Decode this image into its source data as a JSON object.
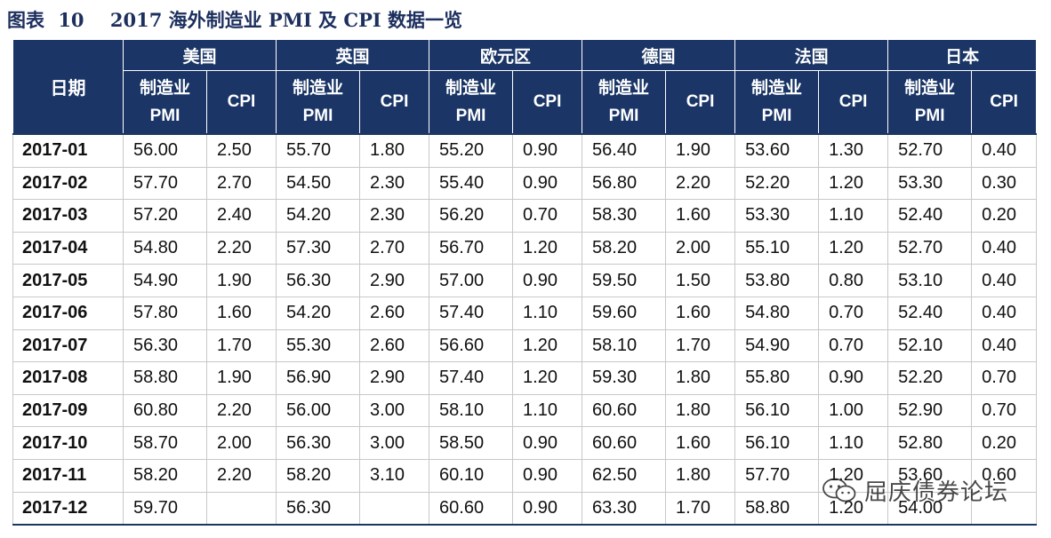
{
  "title": {
    "figure_label": "图表",
    "figure_number": "10",
    "text": "2017 海外制造业 PMI 及 CPI 数据一览"
  },
  "table": {
    "date_header": "日期",
    "countries": [
      "美国",
      "英国",
      "欧元区",
      "德国",
      "法国",
      "日本"
    ],
    "sub_headers": {
      "pmi_line1": "制造业",
      "pmi_line2": "PMI",
      "cpi": "CPI"
    },
    "rows": [
      {
        "date": "2017-01",
        "cells": [
          "56.00",
          "2.50",
          "55.70",
          "1.80",
          "55.20",
          "0.90",
          "56.40",
          "1.90",
          "53.60",
          "1.30",
          "52.70",
          "0.40"
        ]
      },
      {
        "date": "2017-02",
        "cells": [
          "57.70",
          "2.70",
          "54.50",
          "2.30",
          "55.40",
          "0.90",
          "56.80",
          "2.20",
          "52.20",
          "1.20",
          "53.30",
          "0.30"
        ]
      },
      {
        "date": "2017-03",
        "cells": [
          "57.20",
          "2.40",
          "54.20",
          "2.30",
          "56.20",
          "0.70",
          "58.30",
          "1.60",
          "53.30",
          "1.10",
          "52.40",
          "0.20"
        ]
      },
      {
        "date": "2017-04",
        "cells": [
          "54.80",
          "2.20",
          "57.30",
          "2.70",
          "56.70",
          "1.20",
          "58.20",
          "2.00",
          "55.10",
          "1.20",
          "52.70",
          "0.40"
        ]
      },
      {
        "date": "2017-05",
        "cells": [
          "54.90",
          "1.90",
          "56.30",
          "2.90",
          "57.00",
          "0.90",
          "59.50",
          "1.50",
          "53.80",
          "0.80",
          "53.10",
          "0.40"
        ]
      },
      {
        "date": "2017-06",
        "cells": [
          "57.80",
          "1.60",
          "54.20",
          "2.60",
          "57.40",
          "1.10",
          "59.60",
          "1.60",
          "54.80",
          "0.70",
          "52.40",
          "0.40"
        ]
      },
      {
        "date": "2017-07",
        "cells": [
          "56.30",
          "1.70",
          "55.30",
          "2.60",
          "56.60",
          "1.20",
          "58.10",
          "1.70",
          "54.90",
          "0.70",
          "52.10",
          "0.40"
        ]
      },
      {
        "date": "2017-08",
        "cells": [
          "58.80",
          "1.90",
          "56.90",
          "2.90",
          "57.40",
          "1.20",
          "59.30",
          "1.80",
          "55.80",
          "0.90",
          "52.20",
          "0.70"
        ]
      },
      {
        "date": "2017-09",
        "cells": [
          "60.80",
          "2.20",
          "56.00",
          "3.00",
          "58.10",
          "1.10",
          "60.60",
          "1.80",
          "56.10",
          "1.00",
          "52.90",
          "0.70"
        ]
      },
      {
        "date": "2017-10",
        "cells": [
          "58.70",
          "2.00",
          "56.30",
          "3.00",
          "58.50",
          "0.90",
          "60.60",
          "1.60",
          "56.10",
          "1.10",
          "52.80",
          "0.20"
        ]
      },
      {
        "date": "2017-11",
        "cells": [
          "58.20",
          "2.20",
          "58.20",
          "3.10",
          "60.10",
          "0.90",
          "62.50",
          "1.80",
          "57.70",
          "1.20",
          "53.60",
          "0.60"
        ]
      },
      {
        "date": "2017-12",
        "cells": [
          "59.70",
          "",
          "56.30",
          "",
          "60.60",
          "0.90",
          "63.30",
          "1.70",
          "58.80",
          "1.20",
          "54.00",
          ""
        ]
      }
    ]
  },
  "watermark": {
    "text": "屈庆债券论坛",
    "icon": "wechat-icon"
  },
  "colors": {
    "header_bg": "#1a3566",
    "header_text": "#ffffff",
    "title_text": "#1c2f5e",
    "grid": "#c8c8c8"
  }
}
